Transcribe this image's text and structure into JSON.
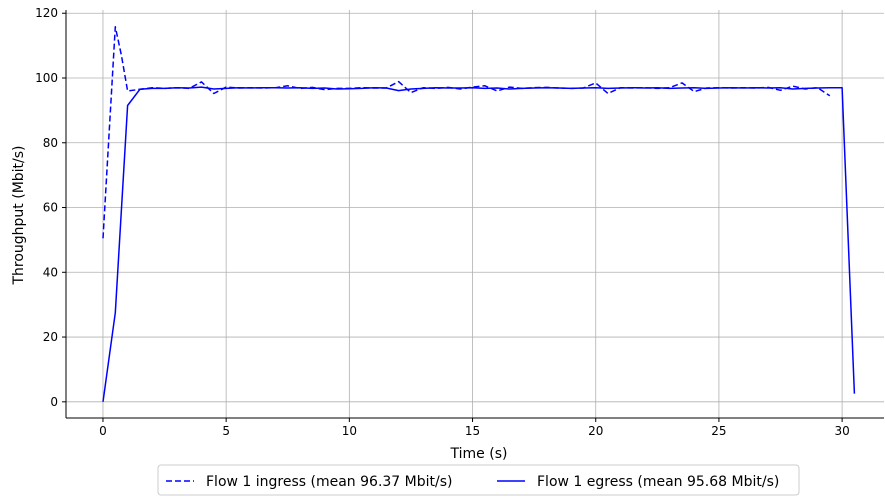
{
  "chart_data": {
    "type": "line",
    "title": "",
    "xlabel": "Time (s)",
    "ylabel": "Throughput (Mbit/s)",
    "xlim": [
      -1.5,
      31.7
    ],
    "ylim": [
      -5,
      121
    ],
    "x_ticks": [
      0,
      5,
      10,
      15,
      20,
      25,
      30
    ],
    "y_ticks": [
      0,
      20,
      40,
      60,
      80,
      100,
      120
    ],
    "grid": true,
    "legend_position": "bottom-center",
    "series": [
      {
        "name": "Flow 1 ingress (mean 96.37 Mbit/s)",
        "style": "dashed",
        "color": "#0000ff",
        "x": [
          0,
          0.5,
          0.75,
          1,
          1.5,
          2,
          2.5,
          3,
          3.5,
          4,
          4.5,
          5,
          5.5,
          6,
          6.5,
          7,
          7.5,
          8,
          8.5,
          9,
          9.5,
          10,
          10.5,
          11,
          11.5,
          12,
          12.5,
          13,
          13.5,
          14,
          14.5,
          15,
          15.5,
          16,
          16.5,
          17,
          17.5,
          18,
          18.5,
          19,
          19.5,
          20,
          20.5,
          21,
          21.5,
          22,
          22.5,
          23,
          23.5,
          24,
          24.5,
          25,
          25.5,
          26,
          26.5,
          27,
          27.5,
          28,
          28.5,
          29,
          29.5
        ],
        "y": [
          50.5,
          115.8,
          107,
          96,
          96.5,
          97,
          96.8,
          97,
          96.8,
          98.8,
          95.2,
          97.2,
          96.9,
          97,
          96.9,
          97,
          97.6,
          96.8,
          97.1,
          96.4,
          96.8,
          96.8,
          97,
          96.9,
          96.9,
          98.9,
          95.5,
          97,
          96.8,
          97.1,
          96.6,
          97.2,
          97.6,
          96,
          97.2,
          96.8,
          97,
          97.1,
          96.9,
          96.8,
          96.9,
          98.5,
          95.2,
          97,
          96.9,
          97,
          96.8,
          97,
          98.5,
          95.8,
          96.9,
          97,
          96.9,
          97,
          96.9,
          97.1,
          96.2,
          97.5,
          96.6,
          97,
          94.5
        ]
      },
      {
        "name": "Flow 1 egress (mean 95.68 Mbit/s)",
        "style": "solid",
        "color": "#0000ff",
        "x": [
          0,
          0.5,
          1,
          1.5,
          2,
          2.5,
          3,
          3.5,
          4,
          4.5,
          5,
          5.5,
          6,
          6.5,
          7,
          7.5,
          8,
          8.5,
          9,
          9.5,
          10,
          10.5,
          11,
          11.5,
          12,
          12.5,
          13,
          13.5,
          14,
          14.5,
          15,
          15.5,
          16,
          16.5,
          17,
          17.5,
          18,
          18.5,
          19,
          19.5,
          20,
          20.5,
          21,
          21.5,
          22,
          22.5,
          23,
          23.5,
          24,
          24.5,
          25,
          25.5,
          26,
          26.5,
          27,
          27.5,
          28,
          28.5,
          29,
          29.5,
          30,
          30.5
        ],
        "y": [
          0,
          27.5,
          91.5,
          96.5,
          96.8,
          96.8,
          97,
          96.9,
          97.2,
          96.6,
          96.8,
          97,
          96.9,
          97,
          97,
          96.9,
          97,
          96.8,
          96.9,
          96.6,
          96.7,
          96.8,
          97,
          96.9,
          96.1,
          96.6,
          96.8,
          97,
          96.9,
          96.9,
          97,
          96.8,
          96.9,
          96.6,
          96.8,
          96.9,
          97,
          96.9,
          96.8,
          96.9,
          97,
          96.8,
          96.9,
          97,
          96.9,
          97,
          96.8,
          96.9,
          97,
          96.8,
          96.9,
          97,
          96.9,
          97,
          96.9,
          97,
          96.6,
          96.8,
          96.9,
          97,
          97,
          2.5
        ]
      }
    ]
  }
}
